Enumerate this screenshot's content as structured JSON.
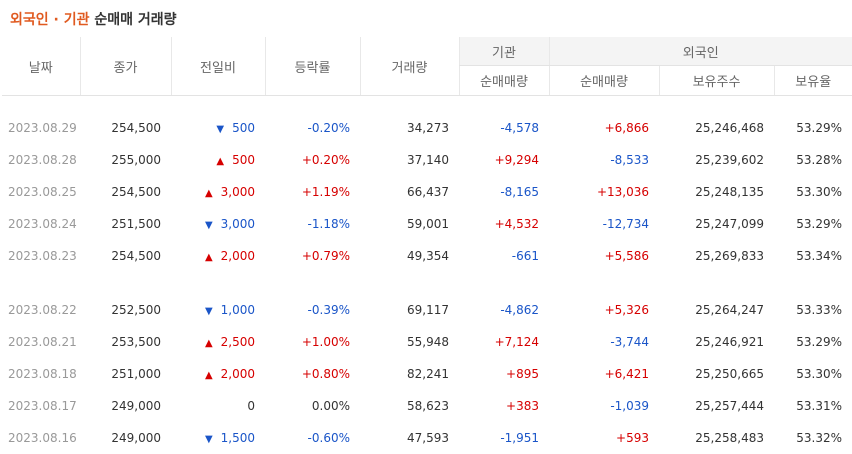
{
  "title": {
    "part1": "외국인 · 기관",
    "part2": "순매매 거래량"
  },
  "headers": {
    "date": "날짜",
    "close": "종가",
    "change": "전일비",
    "rate": "등락률",
    "volume": "거래량",
    "inst_group": "기관",
    "inst_net": "순매매량",
    "foreign_group": "외국인",
    "foreign_net": "순매매량",
    "foreign_hold": "보유주수",
    "foreign_ratio": "보유율"
  },
  "rows": [
    {
      "date": "2023.08.29",
      "close": "254,500",
      "dir": "down",
      "change": "500",
      "rate": "-0.20%",
      "volume": "34,273",
      "inst": "-4,578",
      "foreign": "+6,866",
      "hold": "25,246,468",
      "ratio": "53.29%"
    },
    {
      "date": "2023.08.28",
      "close": "255,000",
      "dir": "up",
      "change": "500",
      "rate": "+0.20%",
      "volume": "37,140",
      "inst": "+9,294",
      "foreign": "-8,533",
      "hold": "25,239,602",
      "ratio": "53.28%"
    },
    {
      "date": "2023.08.25",
      "close": "254,500",
      "dir": "up",
      "change": "3,000",
      "rate": "+1.19%",
      "volume": "66,437",
      "inst": "-8,165",
      "foreign": "+13,036",
      "hold": "25,248,135",
      "ratio": "53.30%"
    },
    {
      "date": "2023.08.24",
      "close": "251,500",
      "dir": "down",
      "change": "3,000",
      "rate": "-1.18%",
      "volume": "59,001",
      "inst": "+4,532",
      "foreign": "-12,734",
      "hold": "25,247,099",
      "ratio": "53.29%"
    },
    {
      "date": "2023.08.23",
      "close": "254,500",
      "dir": "up",
      "change": "2,000",
      "rate": "+0.79%",
      "volume": "49,354",
      "inst": "-661",
      "foreign": "+5,586",
      "hold": "25,269,833",
      "ratio": "53.34%"
    },
    {
      "date": "2023.08.22",
      "close": "252,500",
      "dir": "down",
      "change": "1,000",
      "rate": "-0.39%",
      "volume": "69,117",
      "inst": "-4,862",
      "foreign": "+5,326",
      "hold": "25,264,247",
      "ratio": "53.33%"
    },
    {
      "date": "2023.08.21",
      "close": "253,500",
      "dir": "up",
      "change": "2,500",
      "rate": "+1.00%",
      "volume": "55,948",
      "inst": "+7,124",
      "foreign": "-3,744",
      "hold": "25,246,921",
      "ratio": "53.29%"
    },
    {
      "date": "2023.08.18",
      "close": "251,000",
      "dir": "up",
      "change": "2,000",
      "rate": "+0.80%",
      "volume": "82,241",
      "inst": "+895",
      "foreign": "+6,421",
      "hold": "25,250,665",
      "ratio": "53.30%"
    },
    {
      "date": "2023.08.17",
      "close": "249,000",
      "dir": "none",
      "change": "0",
      "rate": "0.00%",
      "volume": "58,623",
      "inst": "+383",
      "foreign": "-1,039",
      "hold": "25,257,444",
      "ratio": "53.31%"
    },
    {
      "date": "2023.08.16",
      "close": "249,000",
      "dir": "down",
      "change": "1,500",
      "rate": "-0.60%",
      "volume": "47,593",
      "inst": "-1,951",
      "foreign": "+593",
      "hold": "25,258,483",
      "ratio": "53.32%"
    }
  ],
  "colors": {
    "up": "#d60000",
    "down": "#1a55c8",
    "accent": "#e05a20"
  },
  "icons": {
    "up": "▲",
    "down": "▼"
  }
}
